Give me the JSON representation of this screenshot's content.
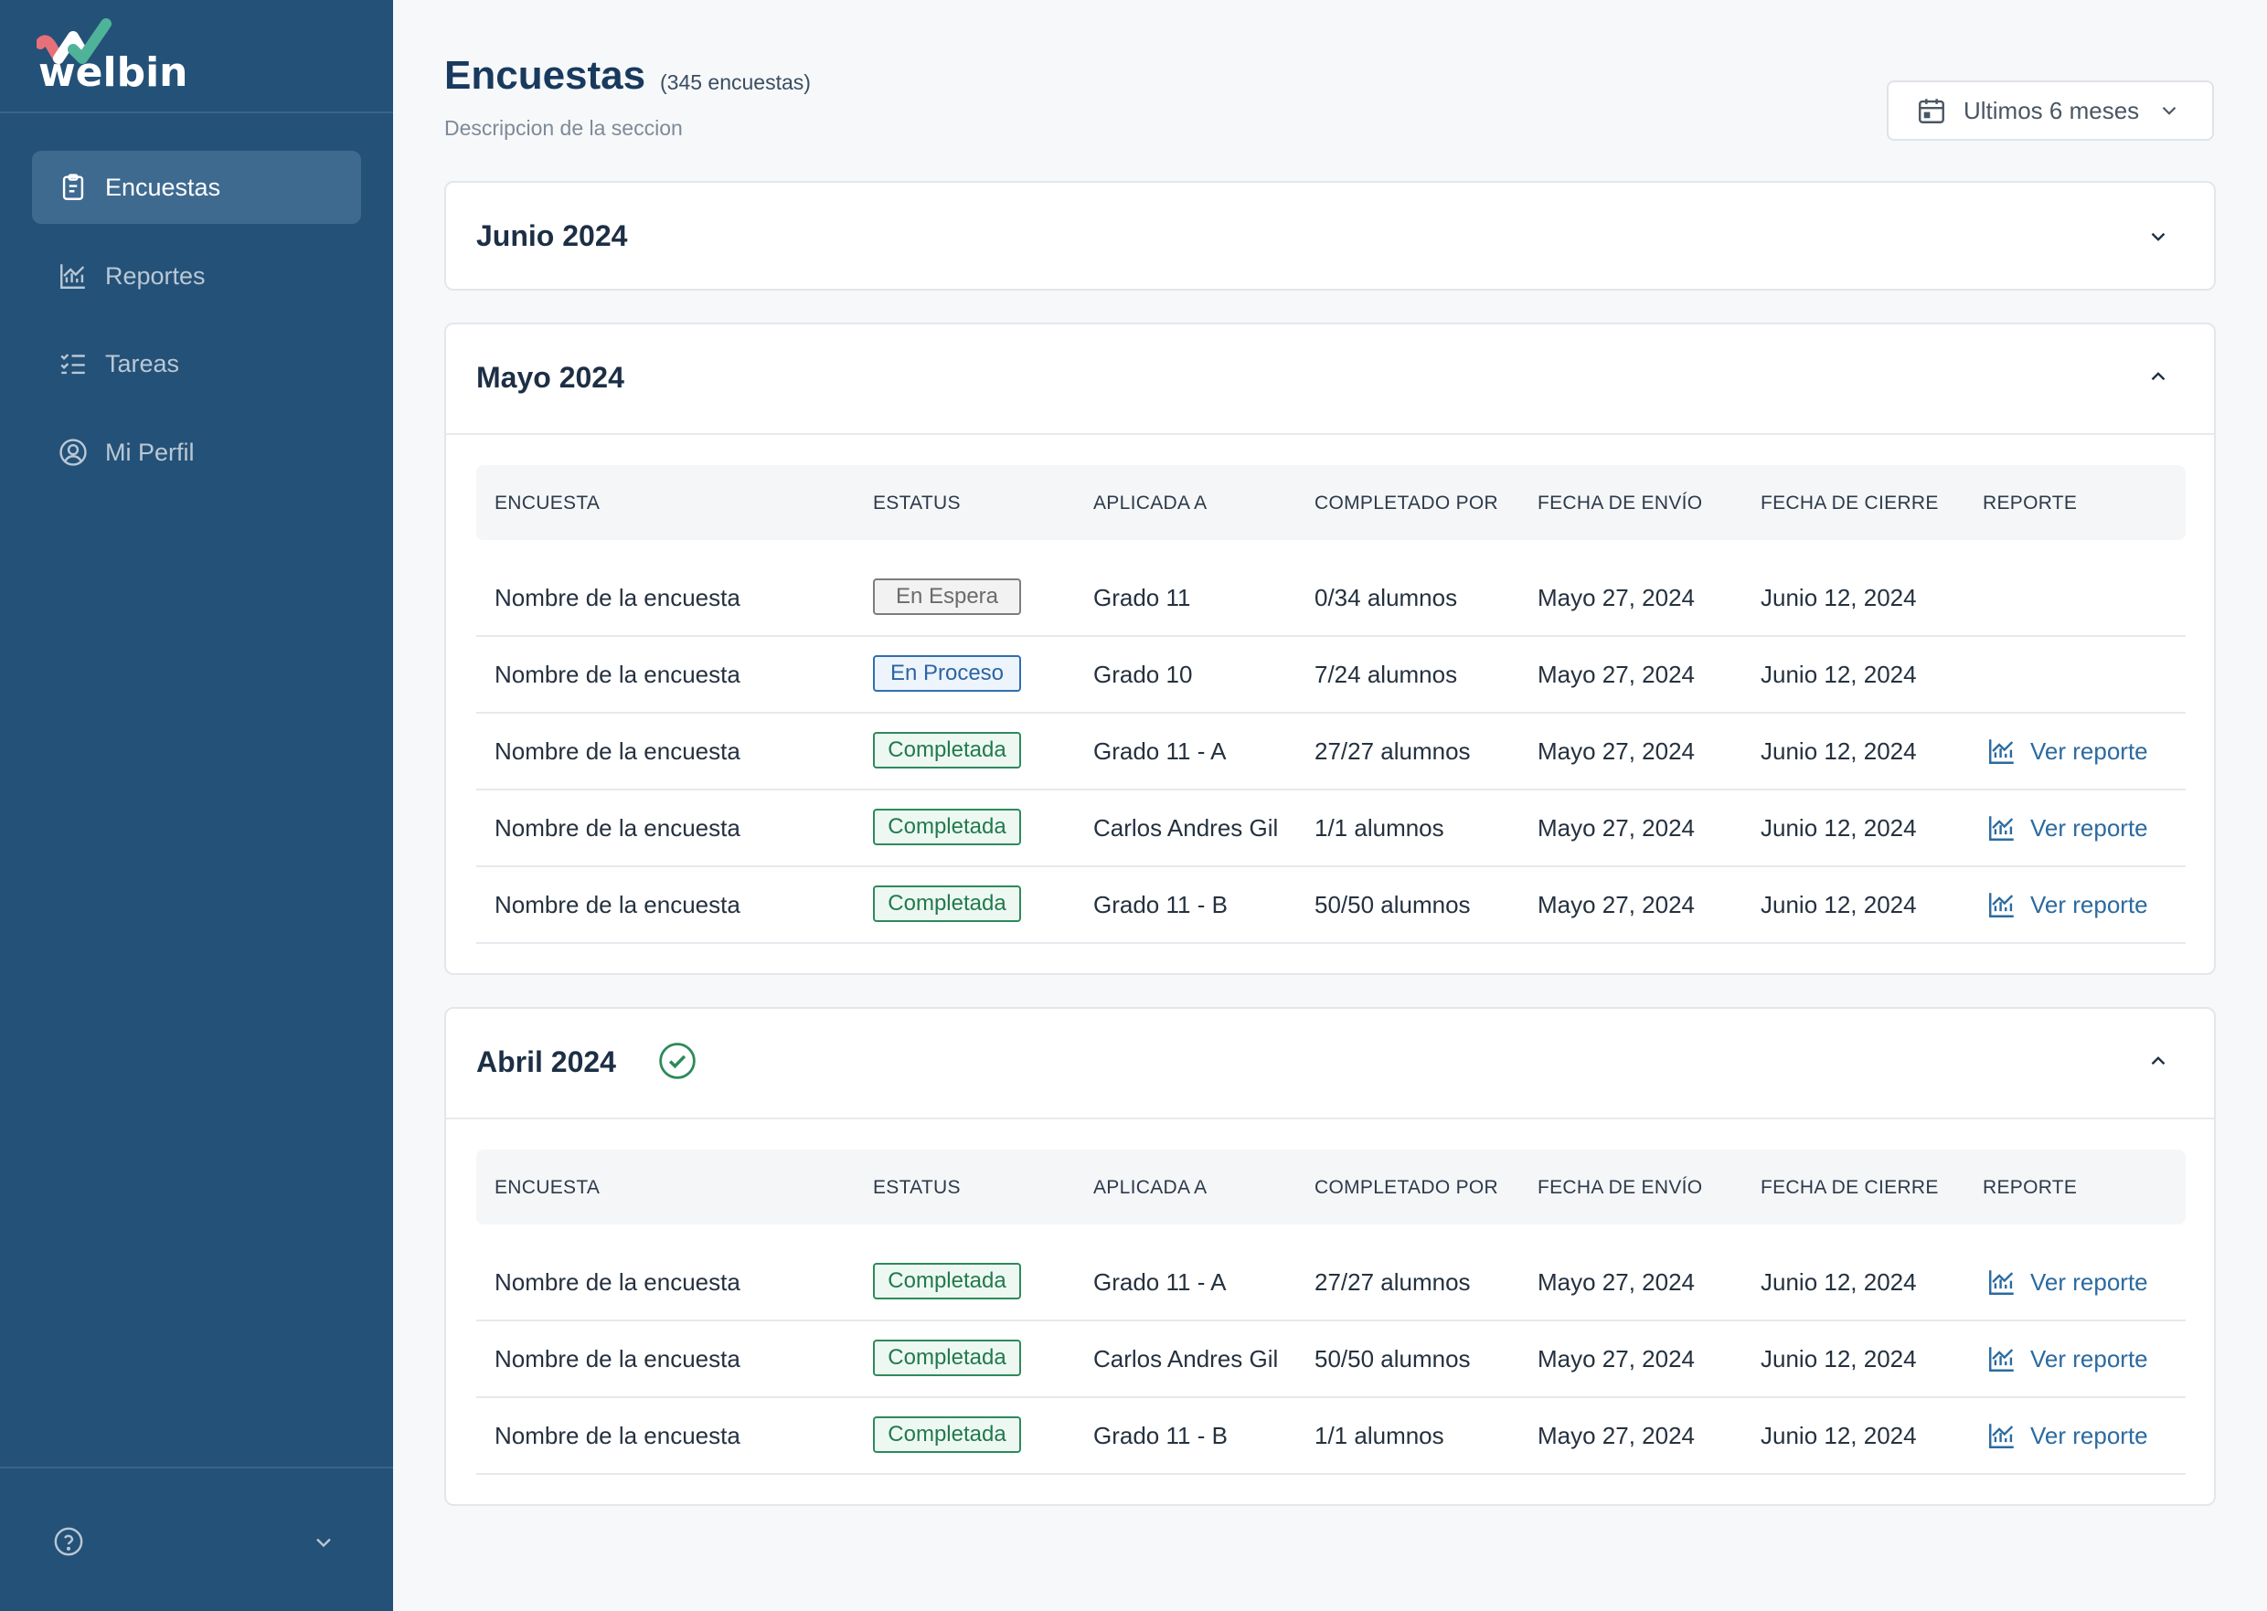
{
  "app": {
    "logo_text": "welbin"
  },
  "sidebar": {
    "items": [
      {
        "label": "Encuestas",
        "icon": "clipboard-icon",
        "active": true
      },
      {
        "label": "Reportes",
        "icon": "chart-icon",
        "active": false
      },
      {
        "label": "Tareas",
        "icon": "checklist-icon",
        "active": false
      },
      {
        "label": "Mi Perfil",
        "icon": "user-circle-icon",
        "active": false
      }
    ],
    "footer": {
      "help_icon": "help-icon",
      "chevron_icon": "chevron-down-icon"
    }
  },
  "header": {
    "title": "Encuestas",
    "count": "(345 encuestas)",
    "description": "Descripcion de la seccion",
    "date_filter": "Ultimos 6 meses"
  },
  "table_headers": [
    "ENCUESTA",
    "ESTATUS",
    "APLICADA A",
    "COMPLETADO POR",
    "FECHA DE ENVÍO",
    "FECHA DE CIERRE",
    "REPORTE"
  ],
  "groups": [
    {
      "title": "Junio 2024",
      "expanded": false,
      "rows": []
    },
    {
      "title": "Mayo 2024",
      "expanded": true,
      "rows": [
        {
          "name": "Nombre de la encuesta",
          "status": "En Espera",
          "status_type": "espera",
          "applied": "Grado 11",
          "completed": "0/34 alumnos",
          "sent": "Mayo 27, 2024",
          "closed": "Junio 12, 2024",
          "report": ""
        },
        {
          "name": "Nombre de la encuesta",
          "status": "En Proceso",
          "status_type": "proceso",
          "applied": "Grado 10",
          "completed": "7/24 alumnos",
          "sent": "Mayo 27, 2024",
          "closed": "Junio 12, 2024",
          "report": ""
        },
        {
          "name": "Nombre de la encuesta",
          "status": "Completada",
          "status_type": "completada",
          "applied": "Grado 11 - A",
          "completed": "27/27 alumnos",
          "sent": "Mayo 27, 2024",
          "closed": "Junio 12, 2024",
          "report": "Ver reporte"
        },
        {
          "name": "Nombre de la encuesta",
          "status": "Completada",
          "status_type": "completada",
          "applied": "Carlos Andres Gil",
          "completed": "1/1 alumnos",
          "sent": "Mayo 27, 2024",
          "closed": "Junio 12, 2024",
          "report": "Ver reporte"
        },
        {
          "name": "Nombre de la encuesta",
          "status": "Completada",
          "status_type": "completada",
          "applied": "Grado 11 - B",
          "completed": "50/50 alumnos",
          "sent": "Mayo 27, 2024",
          "closed": "Junio 12, 2024",
          "report": "Ver reporte"
        }
      ]
    },
    {
      "title": "Abril 2024",
      "expanded": true,
      "completed_check": true,
      "rows": [
        {
          "name": "Nombre de la encuesta",
          "status": "Completada",
          "status_type": "completada",
          "applied": "Grado 11 - A",
          "completed": "27/27 alumnos",
          "sent": "Mayo 27, 2024",
          "closed": "Junio 12, 2024",
          "report": "Ver reporte"
        },
        {
          "name": "Nombre de la encuesta",
          "status": "Completada",
          "status_type": "completada",
          "applied": "Carlos Andres Gil",
          "completed": "50/50 alumnos",
          "sent": "Mayo 27, 2024",
          "closed": "Junio 12, 2024",
          "report": "Ver reporte"
        },
        {
          "name": "Nombre de la encuesta",
          "status": "Completada",
          "status_type": "completada",
          "applied": "Grado 11 - B",
          "completed": "1/1 alumnos",
          "sent": "Mayo 27, 2024",
          "closed": "Junio 12, 2024",
          "report": "Ver reporte"
        }
      ]
    }
  ],
  "colors": {
    "sidebar_bg": "#245177",
    "sidebar_active": "#3f6a90",
    "title": "#183a5e",
    "link": "#2b6aa0",
    "completed_green": "#2d8a5b",
    "process_blue": "#2f6fb0",
    "wait_gray": "#7d7d7d"
  }
}
